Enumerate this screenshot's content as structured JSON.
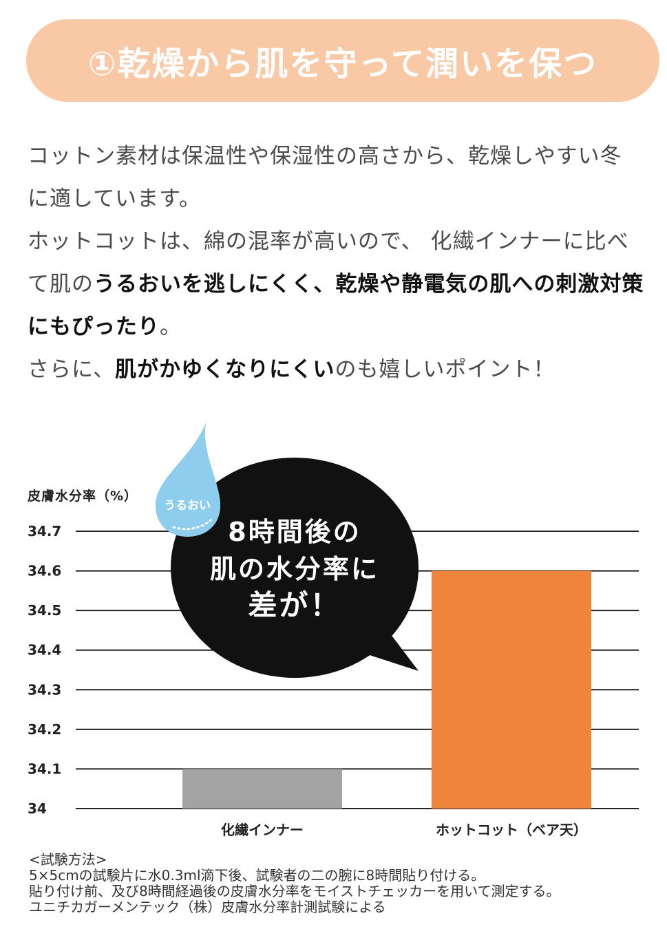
{
  "header": {
    "title": "①乾燥から肌を守って潤いを保つ",
    "bg_color": "#f8c9a4"
  },
  "body": {
    "para1_line1": "コットン素材は保温性や保湿性の高さから、乾燥しやすい冬",
    "para1_line2": "に適しています。",
    "para2_line1": "ホットコットは、綿の混率が高いので、 化繊インナーに比べ",
    "para2_line2_plain": "て肌の",
    "para2_line2_bold": "うるおいを逃しにくく、乾燥や静電気の肌への刺激対策",
    "para2_line3_bold": "にもぴったり",
    "para2_line3_plain": "。",
    "para3_plain1": "さらに、",
    "para3_bold": "肌がかゆくなりにくい",
    "para3_plain2": "のも嬉しいポイント！"
  },
  "callout": {
    "drop_label": "うるおい",
    "line1": "8時間後の",
    "line2": "肌の水分率に",
    "line3": "差が！",
    "drop_color": "#8fcdee",
    "bubble_color": "#111111"
  },
  "chart_data": {
    "type": "bar",
    "ylabel": "皮膚水分率（%）",
    "categories": [
      "化繊インナー",
      "ホットコット（ベア天）"
    ],
    "values": [
      34.1,
      34.6
    ],
    "bar_colors": [
      "#a3a3a3",
      "#ef843b"
    ],
    "ylim": [
      34.0,
      34.7
    ],
    "yticks": [
      34,
      34.1,
      34.2,
      34.3,
      34.4,
      34.5,
      34.6,
      34.7
    ],
    "ytick_labels": [
      "34",
      "34.1",
      "34.2",
      "34.3",
      "34.4",
      "34.5",
      "34.6",
      "34.7"
    ],
    "grid": true
  },
  "footnote": {
    "line1": "<試験方法>",
    "line2": "5×5cmの試験片に水0.3ml滴下後、試験者の二の腕に8時間貼り付ける。",
    "line3": "貼り付け前、及び8時間経過後の皮膚水分率をモイストチェッカーを用いて測定する。",
    "line4": "ユニチカガーメンテック（株）皮膚水分率計測試験による"
  }
}
